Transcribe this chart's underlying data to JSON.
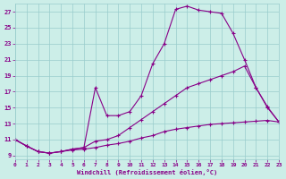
{
  "xlabel": "Windchill (Refroidissement éolien,°C)",
  "bg_color": "#cceee8",
  "grid_color": "#99cccc",
  "line_color": "#880088",
  "marker": "+",
  "xmin": 0,
  "xmax": 23,
  "ymin": 8.5,
  "ymax": 28,
  "yticks": [
    9,
    11,
    13,
    15,
    17,
    19,
    21,
    23,
    25,
    27
  ],
  "xticks": [
    0,
    1,
    2,
    3,
    4,
    5,
    6,
    7,
    8,
    9,
    10,
    11,
    12,
    13,
    14,
    15,
    16,
    17,
    18,
    19,
    20,
    21,
    22,
    23
  ],
  "series1": [
    [
      0,
      11
    ],
    [
      1,
      10.2
    ],
    [
      2,
      9.5
    ],
    [
      3,
      9.3
    ],
    [
      4,
      9.5
    ],
    [
      5,
      9.7
    ],
    [
      6,
      9.8
    ],
    [
      7,
      10.0
    ],
    [
      8,
      10.3
    ],
    [
      9,
      10.5
    ],
    [
      10,
      10.8
    ],
    [
      11,
      11.2
    ],
    [
      12,
      11.5
    ],
    [
      13,
      12.0
    ],
    [
      14,
      12.3
    ],
    [
      15,
      12.5
    ],
    [
      16,
      12.7
    ],
    [
      17,
      12.9
    ],
    [
      18,
      13.0
    ],
    [
      19,
      13.1
    ],
    [
      20,
      13.2
    ],
    [
      21,
      13.3
    ],
    [
      22,
      13.4
    ],
    [
      23,
      13.2
    ]
  ],
  "series2": [
    [
      0,
      11
    ],
    [
      1,
      10.2
    ],
    [
      2,
      9.5
    ],
    [
      3,
      9.3
    ],
    [
      4,
      9.5
    ],
    [
      5,
      9.8
    ],
    [
      6,
      10.0
    ],
    [
      7,
      17.5
    ],
    [
      8,
      14.0
    ],
    [
      9,
      14.0
    ],
    [
      10,
      14.5
    ],
    [
      11,
      16.5
    ],
    [
      12,
      20.5
    ],
    [
      13,
      23.0
    ],
    [
      14,
      27.3
    ],
    [
      15,
      27.7
    ],
    [
      16,
      27.2
    ],
    [
      17,
      27.0
    ],
    [
      18,
      26.8
    ],
    [
      19,
      24.3
    ],
    [
      20,
      21.0
    ],
    [
      21,
      17.5
    ],
    [
      22,
      15.0
    ],
    [
      23,
      13.2
    ]
  ],
  "series3": [
    [
      0,
      11
    ],
    [
      1,
      10.2
    ],
    [
      2,
      9.5
    ],
    [
      3,
      9.3
    ],
    [
      4,
      9.5
    ],
    [
      5,
      9.8
    ],
    [
      6,
      10.0
    ],
    [
      7,
      10.8
    ],
    [
      8,
      11.0
    ],
    [
      9,
      11.5
    ],
    [
      10,
      12.5
    ],
    [
      11,
      13.5
    ],
    [
      12,
      14.5
    ],
    [
      13,
      15.5
    ],
    [
      14,
      16.5
    ],
    [
      15,
      17.5
    ],
    [
      16,
      18.0
    ],
    [
      17,
      18.5
    ],
    [
      18,
      19.0
    ],
    [
      19,
      19.5
    ],
    [
      20,
      20.2
    ],
    [
      21,
      17.5
    ],
    [
      22,
      15.1
    ],
    [
      23,
      13.2
    ]
  ]
}
